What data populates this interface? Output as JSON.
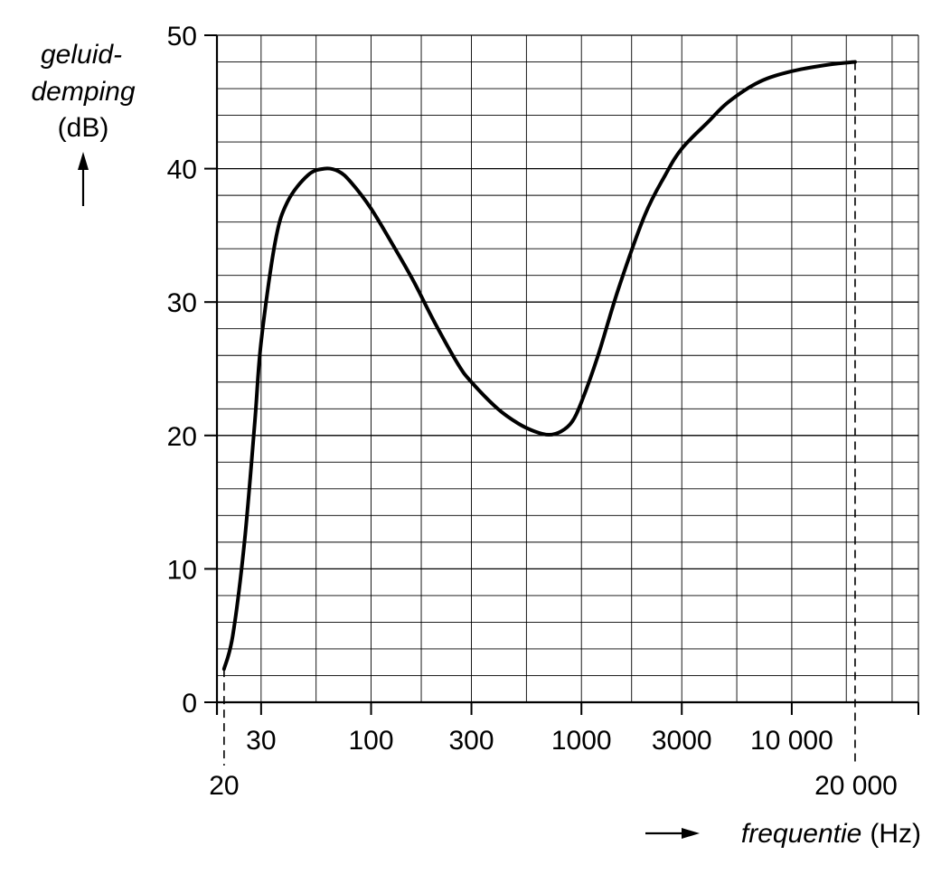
{
  "chart_data": {
    "type": "line",
    "ylabel": {
      "line1": "geluid-",
      "line2": "demping",
      "unit": "(dB)"
    },
    "xlabel": {
      "name": "frequentie",
      "unit": "(Hz)"
    },
    "x_scale": "log",
    "xlim": [
      18.5,
      40000
    ],
    "ylim": [
      0,
      50
    ],
    "y_ticks": [
      0,
      10,
      20,
      30,
      40,
      50
    ],
    "y_tick_labels": [
      "0",
      "10",
      "20",
      "30",
      "40",
      "50"
    ],
    "x_ticks": [
      {
        "value": 30,
        "label": "30"
      },
      {
        "value": 100,
        "label": "100"
      },
      {
        "value": 300,
        "label": "300"
      },
      {
        "value": 1000,
        "label": "1000"
      },
      {
        "value": 3000,
        "label": "3000"
      },
      {
        "value": 10000,
        "label": "10 000"
      }
    ],
    "x_markers": [
      {
        "value": 20,
        "label": "20"
      },
      {
        "value": 20000,
        "label": "20 000"
      }
    ],
    "grid": true,
    "series": [
      {
        "x": [
          20,
          22,
          25,
          28,
          30,
          35,
          40,
          50,
          60,
          70,
          80,
          100,
          130,
          160,
          200,
          260,
          300,
          400,
          500,
          600,
          700,
          800,
          900,
          1000,
          1200,
          1500,
          2000,
          2500,
          3000,
          4000,
          5000,
          7000,
          10000,
          15000,
          20000
        ],
        "y": [
          2.5,
          5,
          12,
          21,
          27,
          34.5,
          37.5,
          39.5,
          40,
          39.8,
          39,
          37,
          34,
          31.5,
          28.5,
          25.3,
          24,
          22,
          20.9,
          20.3,
          20.05,
          20.3,
          21,
          22.5,
          26,
          31,
          36.5,
          39.5,
          41.5,
          43.5,
          45,
          46.5,
          47.3,
          47.8,
          48
        ]
      }
    ]
  }
}
